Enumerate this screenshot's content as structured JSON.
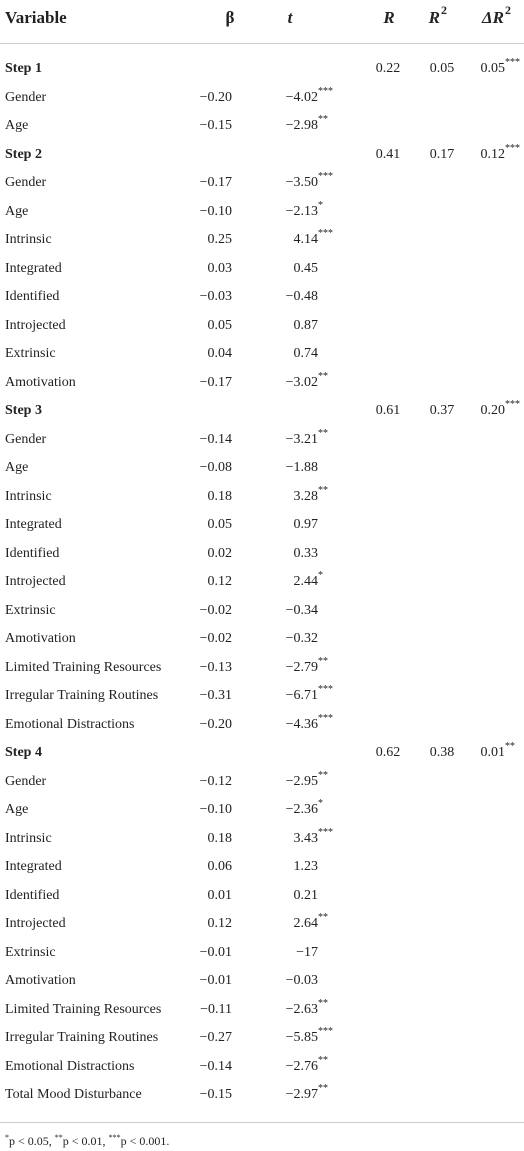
{
  "header": {
    "variable": "Variable",
    "beta": "β",
    "t": "t",
    "R": "R",
    "R2": {
      "text": "R",
      "sup": "2"
    },
    "dR2": {
      "text": "ΔR",
      "sup": "2"
    }
  },
  "steps": [
    {
      "label": "Step 1",
      "R": "0.22",
      "R2": "0.05",
      "dR2": {
        "value": "0.05",
        "sig": "***"
      },
      "rows": [
        {
          "variable": "Gender",
          "beta": "−0.20",
          "t": {
            "value": "−4.02",
            "sig": "***"
          }
        },
        {
          "variable": "Age",
          "beta": "−0.15",
          "t": {
            "value": "−2.98",
            "sig": "**"
          }
        }
      ]
    },
    {
      "label": "Step 2",
      "R": "0.41",
      "R2": "0.17",
      "dR2": {
        "value": "0.12",
        "sig": "***"
      },
      "rows": [
        {
          "variable": "Gender",
          "beta": "−0.17",
          "t": {
            "value": "−3.50",
            "sig": "***"
          }
        },
        {
          "variable": "Age",
          "beta": "−0.10",
          "t": {
            "value": "−2.13",
            "sig": "*"
          }
        },
        {
          "variable": "Intrinsic",
          "beta": "0.25",
          "t": {
            "value": "4.14",
            "sig": "***"
          }
        },
        {
          "variable": "Integrated",
          "beta": "0.03",
          "t": {
            "value": "0.45"
          }
        },
        {
          "variable": "Identified",
          "beta": "−0.03",
          "t": {
            "value": "−0.48"
          }
        },
        {
          "variable": "Introjected",
          "beta": "0.05",
          "t": {
            "value": "0.87"
          }
        },
        {
          "variable": "Extrinsic",
          "beta": "0.04",
          "t": {
            "value": "0.74"
          }
        },
        {
          "variable": "Amotivation",
          "beta": "−0.17",
          "t": {
            "value": "−3.02",
            "sig": "**"
          }
        }
      ]
    },
    {
      "label": "Step 3",
      "R": "0.61",
      "R2": "0.37",
      "dR2": {
        "value": "0.20",
        "sig": "***"
      },
      "rows": [
        {
          "variable": "Gender",
          "beta": "−0.14",
          "t": {
            "value": "−3.21",
            "sig": "**"
          }
        },
        {
          "variable": "Age",
          "beta": "−0.08",
          "t": {
            "value": "−1.88"
          }
        },
        {
          "variable": "Intrinsic",
          "beta": "0.18",
          "t": {
            "value": "3.28",
            "sig": "**"
          }
        },
        {
          "variable": "Integrated",
          "beta": "0.05",
          "t": {
            "value": "0.97"
          }
        },
        {
          "variable": "Identified",
          "beta": "0.02",
          "t": {
            "value": "0.33"
          }
        },
        {
          "variable": "Introjected",
          "beta": "0.12",
          "t": {
            "value": "2.44",
            "sig": "*"
          }
        },
        {
          "variable": "Extrinsic",
          "beta": "−0.02",
          "t": {
            "value": "−0.34"
          }
        },
        {
          "variable": "Amotivation",
          "beta": "−0.02",
          "t": {
            "value": "−0.32"
          }
        },
        {
          "variable": "Limited Training Resources",
          "beta": "−0.13",
          "t": {
            "value": "−2.79",
            "sig": "**"
          }
        },
        {
          "variable": "Irregular Training Routines",
          "beta": "−0.31",
          "t": {
            "value": "−6.71",
            "sig": "***"
          }
        },
        {
          "variable": "Emotional Distractions",
          "beta": "−0.20",
          "t": {
            "value": "−4.36",
            "sig": "***"
          }
        }
      ]
    },
    {
      "label": "Step 4",
      "R": "0.62",
      "R2": "0.38",
      "dR2": {
        "value": "0.01",
        "sig": "**"
      },
      "rows": [
        {
          "variable": "Gender",
          "beta": "−0.12",
          "t": {
            "value": "−2.95",
            "sig": "**"
          }
        },
        {
          "variable": "Age",
          "beta": "−0.10",
          "t": {
            "value": "−2.36",
            "sig": "*"
          }
        },
        {
          "variable": "Intrinsic",
          "beta": "0.18",
          "t": {
            "value": "3.43",
            "sig": "***"
          }
        },
        {
          "variable": "Integrated",
          "beta": "0.06",
          "t": {
            "value": "1.23"
          }
        },
        {
          "variable": "Identified",
          "beta": "0.01",
          "t": {
            "value": "0.21"
          }
        },
        {
          "variable": "Introjected",
          "beta": "0.12",
          "t": {
            "value": "2.64",
            "sig": "**"
          }
        },
        {
          "variable": "Extrinsic",
          "beta": "−0.01",
          "t": {
            "value": "−17"
          }
        },
        {
          "variable": "Amotivation",
          "beta": "−0.01",
          "t": {
            "value": "−0.03"
          }
        },
        {
          "variable": "Limited Training Resources",
          "beta": "−0.11",
          "t": {
            "value": "−2.63",
            "sig": "**"
          }
        },
        {
          "variable": "Irregular Training Routines",
          "beta": "−0.27",
          "t": {
            "value": "−5.85",
            "sig": "***"
          }
        },
        {
          "variable": "Emotional Distractions",
          "beta": "−0.14",
          "t": {
            "value": "−2.76",
            "sig": "**"
          }
        },
        {
          "variable": "Total Mood Disturbance",
          "beta": "−0.15",
          "t": {
            "value": "−2.97",
            "sig": "**"
          }
        }
      ]
    }
  ],
  "footnote": [
    {
      "sup": "*",
      "text": "p < 0.05, "
    },
    {
      "sup": "**",
      "text": "p < 0.01, "
    },
    {
      "sup": "***",
      "text": "p < 0.001."
    }
  ]
}
